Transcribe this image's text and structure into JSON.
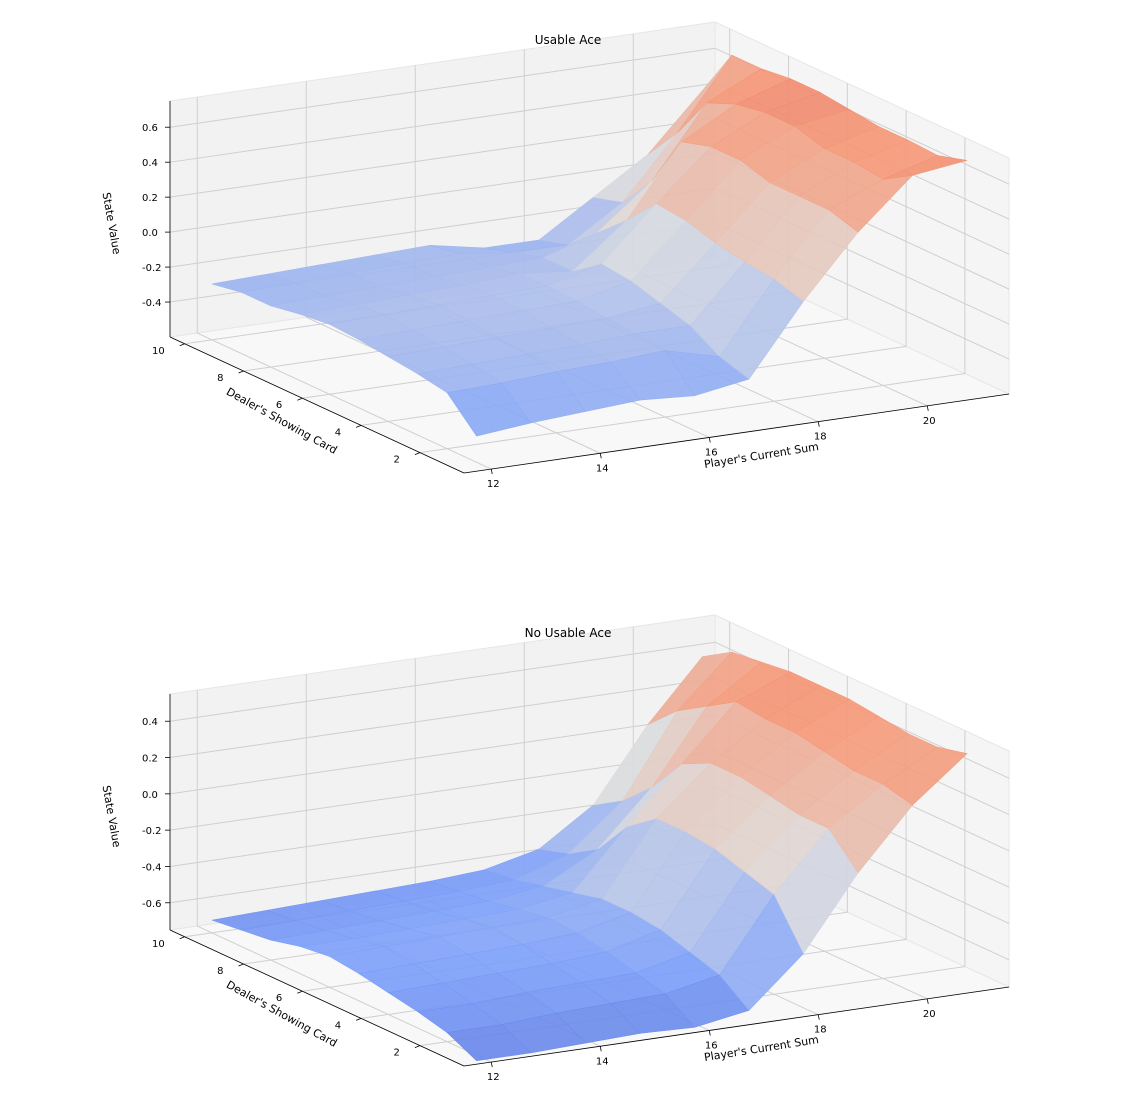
{
  "chart_data": [
    {
      "type": "surface",
      "title": "Usable Ace",
      "xlabel": "Player's Current Sum",
      "ylabel": "Dealer's Showing Card",
      "zlabel": "State Value",
      "x": [
        12,
        13,
        14,
        15,
        16,
        17,
        18,
        19,
        20,
        21
      ],
      "y": [
        1,
        2,
        3,
        4,
        5,
        6,
        7,
        8,
        9,
        10
      ],
      "x_ticks": [
        "12",
        "14",
        "16",
        "18",
        "20"
      ],
      "y_ticks": [
        "2",
        "4",
        "6",
        "8",
        "10"
      ],
      "z_ticks": [
        "-0.4",
        "-0.2",
        "0.0",
        "0.2",
        "0.4",
        "0.6"
      ],
      "zlim": [
        -0.6,
        0.75
      ],
      "colormap": "coolwarm",
      "grid": true,
      "z": [
        [
          -0.45,
          -0.42,
          -0.4,
          -0.38,
          -0.4,
          -0.35,
          0.05,
          0.4,
          0.68,
          0.72
        ],
        [
          -0.28,
          -0.27,
          -0.25,
          -0.24,
          -0.22,
          -0.3,
          0.1,
          0.45,
          0.58,
          0.67
        ],
        [
          -0.25,
          -0.24,
          -0.23,
          -0.22,
          -0.2,
          -0.2,
          0.12,
          0.45,
          0.6,
          0.68
        ],
        [
          -0.23,
          -0.22,
          -0.21,
          -0.2,
          -0.19,
          -0.15,
          0.15,
          0.45,
          0.6,
          0.68
        ],
        [
          -0.21,
          -0.2,
          -0.19,
          -0.18,
          -0.17,
          -0.1,
          0.2,
          0.5,
          0.65,
          0.7
        ],
        [
          -0.2,
          -0.19,
          -0.18,
          -0.17,
          -0.16,
          -0.08,
          0.22,
          0.5,
          0.65,
          0.72
        ],
        [
          -0.22,
          -0.21,
          -0.2,
          -0.19,
          -0.17,
          -0.2,
          0.05,
          0.45,
          0.62,
          0.72
        ],
        [
          -0.25,
          -0.24,
          -0.23,
          -0.22,
          -0.21,
          -0.2,
          -0.1,
          0.15,
          0.55,
          0.7
        ],
        [
          -0.25,
          -0.24,
          -0.23,
          -0.22,
          -0.21,
          -0.25,
          -0.25,
          -0.05,
          0.3,
          0.7
        ],
        [
          -0.28,
          -0.27,
          -0.26,
          -0.25,
          -0.24,
          -0.3,
          -0.3,
          -0.1,
          0.1,
          0.42
        ]
      ]
    },
    {
      "type": "surface",
      "title": "No Usable Ace",
      "xlabel": "Player's Current Sum",
      "ylabel": "Dealer's Showing Card",
      "zlabel": "State Value",
      "x": [
        12,
        13,
        14,
        15,
        16,
        17,
        18,
        19,
        20,
        21
      ],
      "y": [
        1,
        2,
        3,
        4,
        5,
        6,
        7,
        8,
        9,
        10
      ],
      "x_ticks": [
        "12",
        "14",
        "16",
        "18",
        "20"
      ],
      "y_ticks": [
        "2",
        "4",
        "6",
        "8",
        "10"
      ],
      "z_ticks": [
        "-0.6",
        "-0.4",
        "-0.2",
        "0.0",
        "0.2",
        "0.4"
      ],
      "zlim": [
        -0.75,
        0.55
      ],
      "colormap": "coolwarm",
      "grid": true,
      "z": [
        [
          -0.78,
          -0.78,
          -0.77,
          -0.76,
          -0.77,
          -0.72,
          -0.45,
          -0.05,
          0.28,
          0.52
        ],
        [
          -0.7,
          -0.7,
          -0.68,
          -0.67,
          -0.66,
          -0.6,
          -0.2,
          0.12,
          0.32,
          0.48
        ],
        [
          -0.66,
          -0.66,
          -0.64,
          -0.63,
          -0.62,
          -0.55,
          -0.15,
          0.12,
          0.32,
          0.48
        ],
        [
          -0.63,
          -0.62,
          -0.61,
          -0.6,
          -0.58,
          -0.5,
          -0.1,
          0.15,
          0.35,
          0.5
        ],
        [
          -0.6,
          -0.59,
          -0.58,
          -0.57,
          -0.55,
          -0.48,
          -0.08,
          0.18,
          0.38,
          0.52
        ],
        [
          -0.58,
          -0.57,
          -0.56,
          -0.55,
          -0.54,
          -0.48,
          -0.08,
          0.18,
          0.38,
          0.52
        ],
        [
          -0.6,
          -0.6,
          -0.59,
          -0.58,
          -0.57,
          -0.52,
          -0.2,
          0.1,
          0.4,
          0.52
        ],
        [
          -0.64,
          -0.63,
          -0.62,
          -0.61,
          -0.6,
          -0.56,
          -0.4,
          -0.1,
          0.3,
          0.5
        ],
        [
          -0.66,
          -0.65,
          -0.64,
          -0.63,
          -0.62,
          -0.6,
          -0.5,
          -0.25,
          0.2,
          0.48
        ],
        [
          -0.68,
          -0.67,
          -0.66,
          -0.65,
          -0.64,
          -0.62,
          -0.55,
          -0.35,
          0.05,
          0.38
        ]
      ]
    }
  ]
}
